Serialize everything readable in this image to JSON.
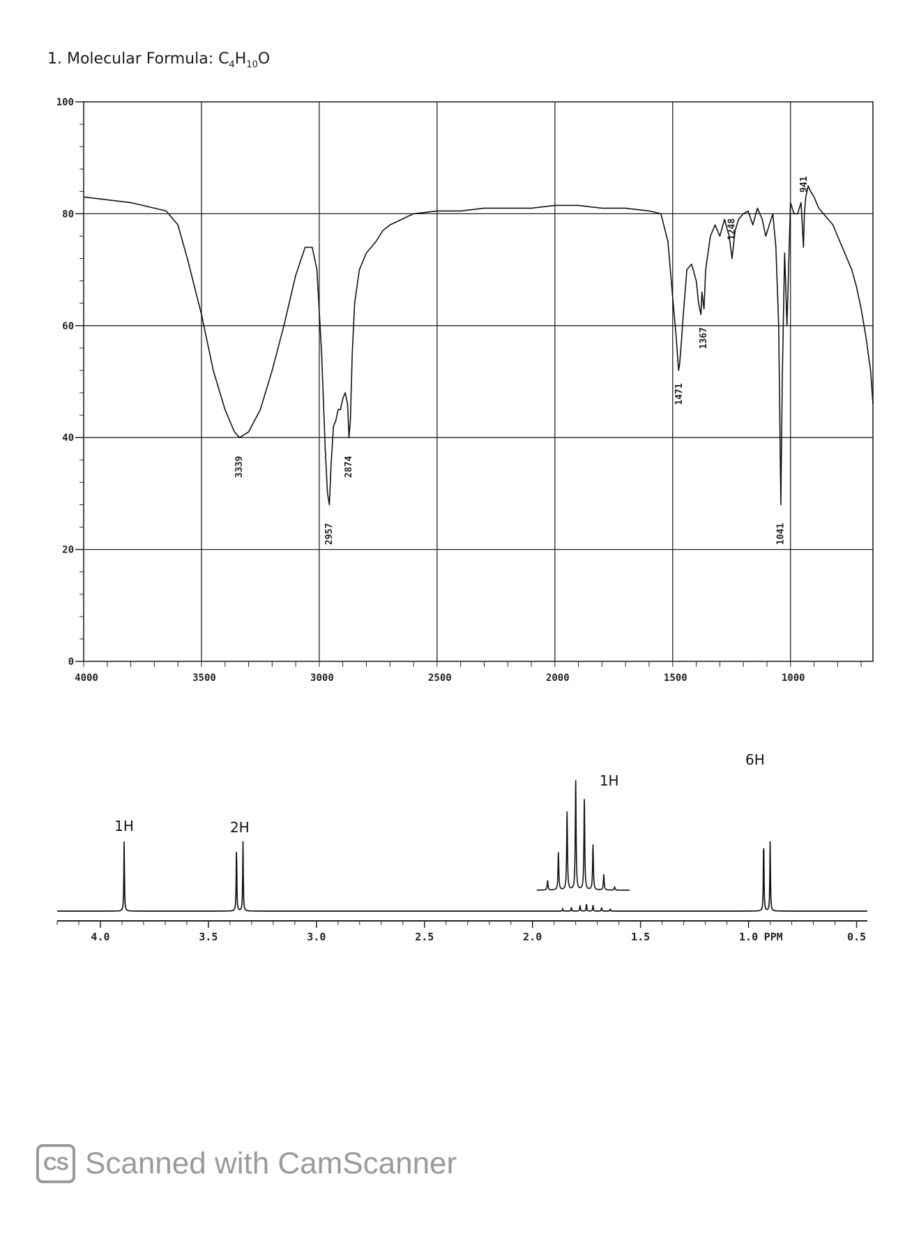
{
  "header": {
    "title_prefix": "1. Molecular Formula: C",
    "subscript_c": "4",
    "h": "H",
    "subscript_h": "10",
    "o": "O"
  },
  "chart_data": [
    {
      "type": "line",
      "spectrum": "IR",
      "xlim": [
        4000,
        650
      ],
      "ylim": [
        0,
        100
      ],
      "x_ticks": [
        "4000",
        "3500",
        "3000",
        "2500",
        "2000",
        "1500",
        "1000"
      ],
      "y_ticks": [
        "100",
        "80",
        "60",
        "40",
        "20",
        "0"
      ],
      "grid": true,
      "x": [
        4000,
        3900,
        3800,
        3700,
        3650,
        3600,
        3560,
        3500,
        3450,
        3400,
        3360,
        3339,
        3300,
        3250,
        3200,
        3150,
        3100,
        3060,
        3030,
        3010,
        2990,
        2975,
        2965,
        2957,
        2950,
        2940,
        2930,
        2920,
        2910,
        2900,
        2890,
        2880,
        2874,
        2868,
        2860,
        2850,
        2830,
        2800,
        2760,
        2730,
        2700,
        2650,
        2600,
        2500,
        2400,
        2300,
        2200,
        2100,
        2000,
        1900,
        1800,
        1700,
        1600,
        1550,
        1520,
        1500,
        1485,
        1475,
        1471,
        1465,
        1455,
        1440,
        1420,
        1400,
        1390,
        1380,
        1376,
        1367,
        1360,
        1340,
        1320,
        1300,
        1280,
        1260,
        1248,
        1235,
        1220,
        1200,
        1180,
        1160,
        1140,
        1120,
        1105,
        1090,
        1075,
        1062,
        1050,
        1041,
        1035,
        1025,
        1015,
        1000,
        985,
        970,
        955,
        945,
        941,
        935,
        925,
        915,
        900,
        880,
        860,
        840,
        820,
        800,
        780,
        760,
        740,
        720,
        700,
        680,
        660,
        650
      ],
      "y": [
        83,
        82.5,
        82,
        81,
        80.5,
        78,
        72,
        62,
        52,
        45,
        41,
        40,
        41,
        45,
        52,
        60,
        69,
        74,
        74,
        70,
        55,
        38,
        30,
        28,
        35,
        42,
        43,
        45,
        45,
        47,
        48,
        46,
        40,
        43,
        55,
        64,
        70,
        73,
        75,
        77,
        78,
        79,
        80,
        80.5,
        80.5,
        81,
        81,
        81,
        81.5,
        81.5,
        81,
        81,
        80.5,
        80,
        75,
        65,
        58,
        52,
        53,
        56,
        62,
        70,
        71,
        68,
        64,
        62,
        66,
        63,
        70,
        76,
        78,
        76,
        79,
        76,
        72,
        77,
        79,
        80,
        80.5,
        78,
        81,
        79,
        76,
        78,
        80,
        74,
        60,
        28,
        50,
        73,
        60,
        82,
        80,
        80,
        82,
        74,
        80,
        83,
        85,
        84,
        83,
        81,
        80,
        79,
        78,
        76,
        74,
        72,
        70,
        67,
        63,
        58,
        52,
        46
      ]
    },
    {
      "type": "line",
      "spectrum": "1H NMR",
      "xlabel": "PPM",
      "xlim": [
        4.2,
        0.45
      ],
      "x_ticks": [
        "4.0",
        "3.5",
        "3.0",
        "2.5",
        "2.0",
        "1.5",
        "1.0",
        "0.5"
      ],
      "peaks": [
        {
          "ppm": 3.89,
          "height": 92
        },
        {
          "ppm": 3.37,
          "height": 88
        },
        {
          "ppm": 3.34,
          "height": 91
        },
        {
          "ppm": 1.86,
          "height": 3
        },
        {
          "ppm": 1.82,
          "height": 5
        },
        {
          "ppm": 1.78,
          "height": 8
        },
        {
          "ppm": 1.75,
          "height": 10
        },
        {
          "ppm": 1.72,
          "height": 8
        },
        {
          "ppm": 1.68,
          "height": 5
        },
        {
          "ppm": 1.64,
          "height": 3
        },
        {
          "ppm": 0.93,
          "height": 100
        },
        {
          "ppm": 0.9,
          "height": 92
        }
      ],
      "inset_multiplet": [
        {
          "ppm": 1.93,
          "height": 12
        },
        {
          "ppm": 1.88,
          "height": 48
        },
        {
          "ppm": 1.84,
          "height": 100
        },
        {
          "ppm": 1.8,
          "height": 140
        },
        {
          "ppm": 1.76,
          "height": 116
        },
        {
          "ppm": 1.72,
          "height": 58
        },
        {
          "ppm": 1.67,
          "height": 20
        },
        {
          "ppm": 1.62,
          "height": 4
        }
      ],
      "integrations": [
        "1H",
        "2H",
        "1H",
        "6H"
      ]
    }
  ],
  "ir_annotations": [
    "3339",
    "2957",
    "2874",
    "1471",
    "1367",
    "1248",
    "941",
    "1041"
  ],
  "watermark": {
    "logo": "CS",
    "text": "Scanned with CamScanner"
  }
}
